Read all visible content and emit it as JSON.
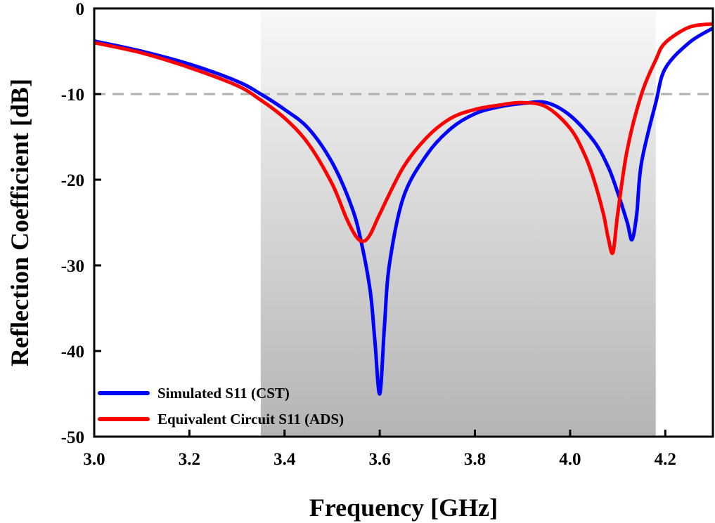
{
  "chart_data": {
    "type": "line",
    "title": "",
    "xlabel": "Frequency [GHz]",
    "ylabel": "Reflection Coefficient [dB]",
    "xlim": [
      3.0,
      4.3
    ],
    "ylim": [
      -50,
      0
    ],
    "xticks": [
      "3.0",
      "3.2",
      "3.4",
      "3.6",
      "3.8",
      "4.0",
      "4.2"
    ],
    "yticks": [
      "0",
      "-10",
      "-20",
      "-30",
      "-40",
      "-50"
    ],
    "grid": false,
    "legend_position": "bottom-left",
    "reference_line": {
      "y": -10,
      "style": "dashed",
      "color": "#b0b0b0"
    },
    "shaded_band": {
      "x_start": 3.35,
      "x_end": 4.18
    },
    "series": [
      {
        "name": "Simulated S11 (CST)",
        "color": "#0000ff",
        "x": [
          3.0,
          3.1,
          3.2,
          3.3,
          3.35,
          3.4,
          3.45,
          3.5,
          3.54,
          3.56,
          3.58,
          3.59,
          3.6,
          3.61,
          3.62,
          3.65,
          3.7,
          3.75,
          3.8,
          3.85,
          3.9,
          3.95,
          4.0,
          4.05,
          4.08,
          4.1,
          4.12,
          4.13,
          4.14,
          4.15,
          4.18,
          4.2,
          4.25,
          4.3
        ],
        "y": [
          -3.8,
          -5.0,
          -6.5,
          -8.5,
          -10.0,
          -11.8,
          -14.0,
          -18.0,
          -23.0,
          -27.0,
          -33.0,
          -39.0,
          -45.0,
          -37.0,
          -30.0,
          -22.0,
          -17.0,
          -14.0,
          -12.3,
          -11.5,
          -11.1,
          -11.0,
          -12.5,
          -15.5,
          -18.5,
          -21.5,
          -25.0,
          -27.0,
          -24.0,
          -18.0,
          -11.0,
          -7.0,
          -4.0,
          -2.3
        ]
      },
      {
        "name": "Equivalent Circuit S11 (ADS)",
        "color": "#ff0000",
        "x": [
          3.0,
          3.1,
          3.2,
          3.3,
          3.35,
          3.4,
          3.45,
          3.5,
          3.53,
          3.55,
          3.565,
          3.58,
          3.6,
          3.65,
          3.7,
          3.75,
          3.8,
          3.85,
          3.9,
          3.95,
          4.0,
          4.03,
          4.05,
          4.07,
          4.08,
          4.09,
          4.1,
          4.12,
          4.15,
          4.18,
          4.2,
          4.25,
          4.3
        ],
        "y": [
          -4.0,
          -5.2,
          -6.9,
          -9.0,
          -10.7,
          -12.8,
          -15.8,
          -20.5,
          -24.5,
          -26.6,
          -27.2,
          -26.4,
          -24.0,
          -18.5,
          -15.0,
          -12.8,
          -11.8,
          -11.3,
          -11.0,
          -11.5,
          -14.0,
          -17.0,
          -20.0,
          -24.0,
          -26.8,
          -28.5,
          -24.0,
          -16.5,
          -10.0,
          -6.0,
          -4.0,
          -2.2,
          -1.8
        ]
      }
    ]
  }
}
